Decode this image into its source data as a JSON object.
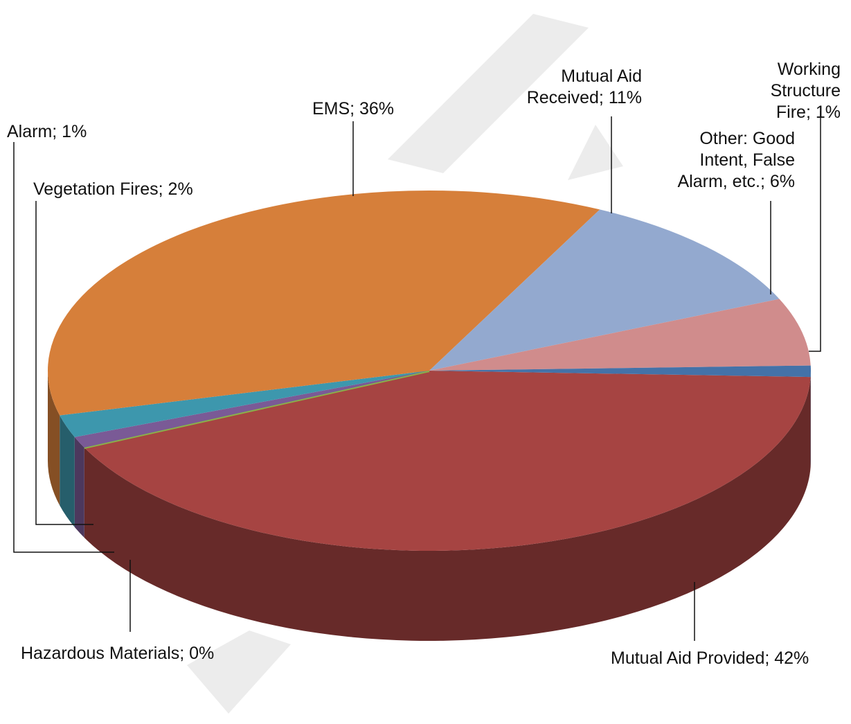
{
  "chart_data": {
    "type": "pie",
    "values": [
      42,
      0,
      1,
      2,
      36,
      11,
      6,
      1
    ],
    "value_labels": [
      "Mutual Aid Provided; 42%",
      "Hazardous Materials; 0%",
      "Alarm; 1%",
      "Vegetation Fires; 2%",
      "EMS; 36%",
      "Mutual Aid Received; 11%",
      "Other: Good Intent, False Alarm, etc.; 6%",
      "Working Structure Fire; 1%"
    ],
    "colors": [
      "#a64442",
      "#8ab04a",
      "#7a5a96",
      "#3d97ad",
      "#d67f3a",
      "#93a9cf",
      "#d08c8c",
      "#4472a8"
    ]
  }
}
